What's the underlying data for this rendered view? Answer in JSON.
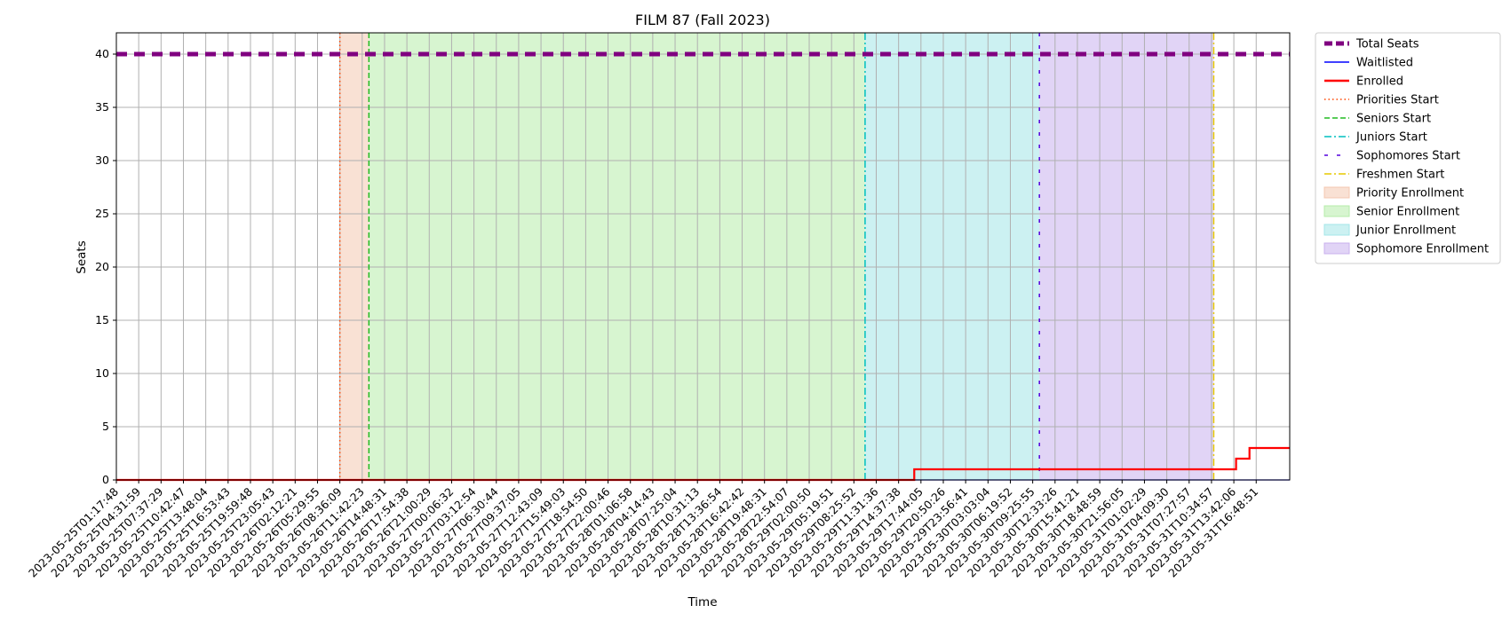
{
  "chart_data": {
    "type": "line",
    "title": "FILM 87 (Fall 2023)",
    "xlabel": "Time",
    "ylabel": "Seats",
    "ylim": [
      0,
      42
    ],
    "yticks": [
      0,
      5,
      10,
      15,
      20,
      25,
      30,
      35,
      40
    ],
    "grid": true,
    "legend_position": "outside-right",
    "x_tick_labels": [
      "2023-05-25T01:17:48",
      "2023-05-25T04:31:59",
      "2023-05-25T07:37:29",
      "2023-05-25T10:42:47",
      "2023-05-25T13:48:04",
      "2023-05-25T16:53:43",
      "2023-05-25T19:59:48",
      "2023-05-25T23:05:43",
      "2023-05-26T02:12:21",
      "2023-05-26T05:29:55",
      "2023-05-26T08:36:09",
      "2023-05-26T11:42:23",
      "2023-05-26T14:48:31",
      "2023-05-26T17:54:38",
      "2023-05-26T21:00:29",
      "2023-05-27T00:06:32",
      "2023-05-27T03:12:54",
      "2023-05-27T06:30:44",
      "2023-05-27T09:37:05",
      "2023-05-27T12:43:09",
      "2023-05-27T15:49:03",
      "2023-05-27T18:54:50",
      "2023-05-27T22:00:46",
      "2023-05-28T01:06:58",
      "2023-05-28T04:14:43",
      "2023-05-28T07:25:04",
      "2023-05-28T10:31:13",
      "2023-05-28T13:36:54",
      "2023-05-28T16:42:42",
      "2023-05-28T19:48:31",
      "2023-05-28T22:54:07",
      "2023-05-29T02:00:50",
      "2023-05-29T05:19:51",
      "2023-05-29T08:25:52",
      "2023-05-29T11:31:36",
      "2023-05-29T14:37:38",
      "2023-05-29T17:44:05",
      "2023-05-29T20:50:26",
      "2023-05-29T23:56:41",
      "2023-05-30T03:03:04",
      "2023-05-30T06:19:52",
      "2023-05-30T09:25:55",
      "2023-05-30T12:33:26",
      "2023-05-30T15:41:21",
      "2023-05-30T18:48:59",
      "2023-05-30T21:56:05",
      "2023-05-31T01:02:29",
      "2023-05-31T04:09:30",
      "2023-05-31T07:27:57",
      "2023-05-31T10:34:57",
      "2023-05-31T13:42:06",
      "2023-05-31T16:48:51"
    ],
    "x_range": [
      0,
      52.5
    ],
    "series": [
      {
        "name": "Total Seats",
        "color": "#800080",
        "style": "dashed-thick",
        "points": [
          [
            0,
            40
          ],
          [
            52.5,
            40
          ]
        ]
      },
      {
        "name": "Waitlisted",
        "color": "#0000ff",
        "style": "solid-thin",
        "points": [
          [
            0,
            0
          ],
          [
            52.5,
            0
          ]
        ]
      },
      {
        "name": "Enrolled",
        "color": "#ff0000",
        "style": "solid-thick",
        "points": [
          [
            0,
            0
          ],
          [
            35.7,
            0
          ],
          [
            35.7,
            1
          ],
          [
            50.1,
            1
          ],
          [
            50.1,
            2
          ],
          [
            50.7,
            2
          ],
          [
            50.7,
            3
          ],
          [
            52.5,
            3
          ]
        ]
      }
    ],
    "markers": [
      {
        "name": "Priorities Start",
        "x": 10.0,
        "color": "#ff4500",
        "style": "dotted"
      },
      {
        "name": "Seniors Start",
        "x": 11.3,
        "color": "#22bb22",
        "style": "dashed"
      },
      {
        "name": "Juniors Start",
        "x": 33.5,
        "color": "#00bfbf",
        "style": "dashdot"
      },
      {
        "name": "Sophomores Start",
        "x": 41.3,
        "color": "#5500dd",
        "style": "loose-dash"
      },
      {
        "name": "Freshmen Start",
        "x": 49.1,
        "color": "#e6c800",
        "style": "dashdot"
      }
    ],
    "regions": [
      {
        "name": "Priority Enrollment",
        "x0": 10.0,
        "x1": 11.3,
        "color": "#f4c8b0"
      },
      {
        "name": "Senior Enrollment",
        "x0": 11.3,
        "x1": 33.5,
        "color": "#b6ecaa"
      },
      {
        "name": "Junior Enrollment",
        "x0": 33.5,
        "x1": 41.3,
        "color": "#a3e6e8"
      },
      {
        "name": "Sophomore Enrollment",
        "x0": 41.3,
        "x1": 49.1,
        "color": "#c9b0ee"
      }
    ]
  }
}
